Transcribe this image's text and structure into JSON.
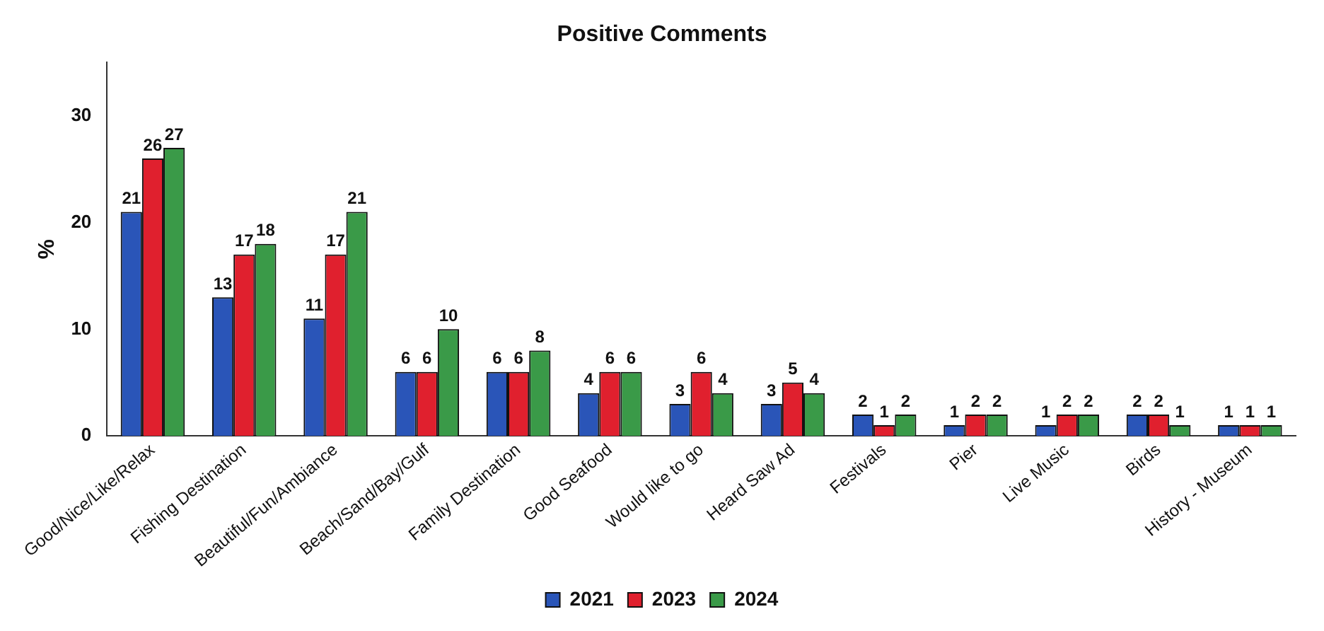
{
  "chart_data": {
    "type": "bar",
    "title": "Positive Comments",
    "ylabel": "%",
    "categories": [
      "Good/Nice/Like/Relax",
      "Fishing Destination",
      "Beautiful/Fun/Ambiance",
      "Beach/Sand/Bay/Gulf",
      "Family Destination",
      "Good Seafood",
      "Would like to go",
      "Heard Saw Ad",
      "Festivals",
      "Pier",
      "Live Music",
      "Birds",
      "History - Museum"
    ],
    "series": [
      {
        "name": "2021",
        "color": "#2a55b8",
        "values": [
          21,
          13,
          11,
          6,
          6,
          4,
          3,
          3,
          2,
          1,
          1,
          2,
          1
        ]
      },
      {
        "name": "2023",
        "color": "#e0202e",
        "values": [
          26,
          17,
          17,
          6,
          6,
          6,
          6,
          5,
          1,
          2,
          2,
          2,
          1
        ]
      },
      {
        "name": "2024",
        "color": "#3a9a48",
        "values": [
          27,
          18,
          21,
          10,
          8,
          6,
          4,
          4,
          2,
          2,
          2,
          1,
          1
        ]
      }
    ],
    "ylim": [
      0,
      35
    ],
    "yticks": [
      0,
      10,
      20,
      30
    ],
    "grid": false,
    "legend": "bottom",
    "data_labels": true
  }
}
